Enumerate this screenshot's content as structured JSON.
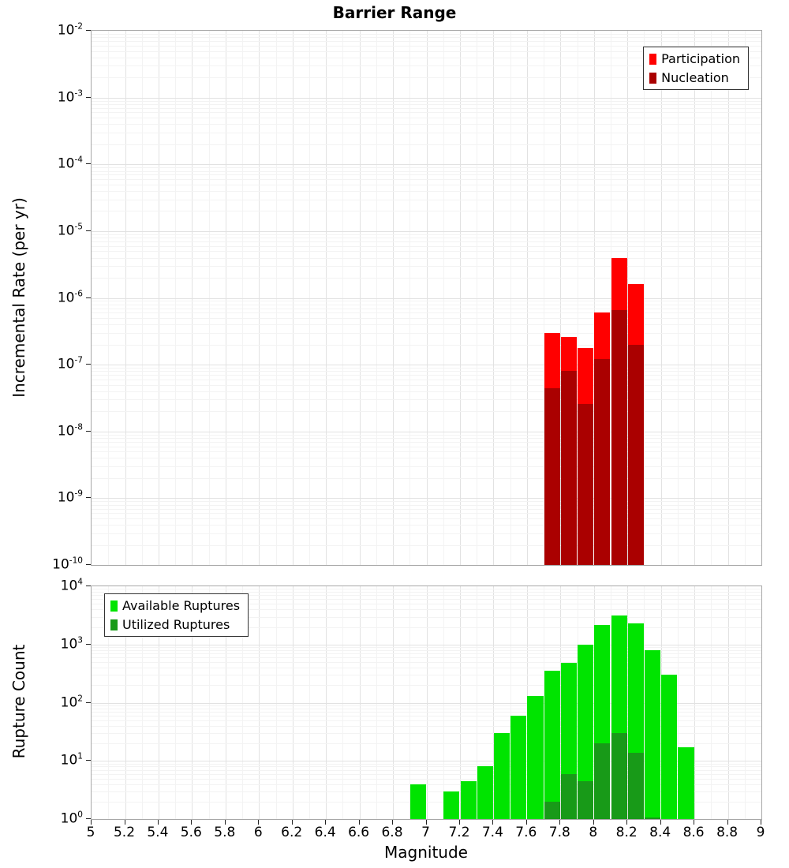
{
  "title": "Barrier Range",
  "chart_data": [
    {
      "type": "bar",
      "panel": "top",
      "title": "Barrier Range",
      "xlabel": "",
      "ylabel": "Incremental Rate (per yr)",
      "yscale": "log",
      "xlim": [
        5,
        9
      ],
      "ylim": [
        1e-10,
        0.01
      ],
      "bar_width": 0.1,
      "grid": true,
      "legend_position": "top-right",
      "y_tick_exponents": [
        -2,
        -3,
        -4,
        -5,
        -6,
        -7,
        -8,
        -9,
        -10
      ],
      "series": [
        {
          "name": "Participation",
          "color": "#ff0000",
          "x": [
            7.75,
            7.85,
            7.95,
            8.05,
            8.15,
            8.25
          ],
          "values": [
            3e-07,
            2.6e-07,
            1.8e-07,
            6e-07,
            4e-06,
            1.6e-06
          ]
        },
        {
          "name": "Nucleation",
          "color": "#aa0000",
          "x": [
            7.75,
            7.85,
            7.95,
            8.05,
            8.15,
            8.25
          ],
          "values": [
            4.5e-08,
            8e-08,
            2.6e-08,
            1.2e-07,
            6.5e-07,
            2e-07
          ]
        }
      ]
    },
    {
      "type": "bar",
      "panel": "bottom",
      "title": "",
      "xlabel": "Magnitude",
      "ylabel": "Rupture Count",
      "yscale": "log",
      "xlim": [
        5,
        9
      ],
      "ylim": [
        1,
        10000
      ],
      "bar_width": 0.1,
      "grid": true,
      "legend_position": "top-left",
      "y_tick_exponents": [
        4,
        3,
        2,
        1,
        0
      ],
      "x_tick_labels": [
        "5",
        "5.2",
        "5.4",
        "5.6",
        "5.8",
        "6",
        "6.2",
        "6.4",
        "6.6",
        "6.8",
        "7",
        "7.2",
        "7.4",
        "7.6",
        "7.8",
        "8",
        "8.2",
        "8.4",
        "8.6",
        "8.8",
        "9"
      ],
      "series": [
        {
          "name": "Available Ruptures",
          "color": "#00e400",
          "x": [
            6.95,
            7.15,
            7.25,
            7.35,
            7.45,
            7.55,
            7.65,
            7.75,
            7.85,
            7.95,
            8.05,
            8.15,
            8.25,
            8.35,
            8.45,
            8.55
          ],
          "values": [
            4,
            3,
            4.5,
            8,
            30,
            60,
            130,
            350,
            480,
            1000,
            2200,
            3200,
            2300,
            800,
            300,
            17
          ]
        },
        {
          "name": "Utilized Ruptures",
          "color": "#189a18",
          "x": [
            7.75,
            7.85,
            7.95,
            8.05,
            8.15,
            8.25,
            8.35
          ],
          "values": [
            2,
            6,
            4.5,
            20,
            30,
            14,
            1.05
          ]
        }
      ]
    }
  ]
}
